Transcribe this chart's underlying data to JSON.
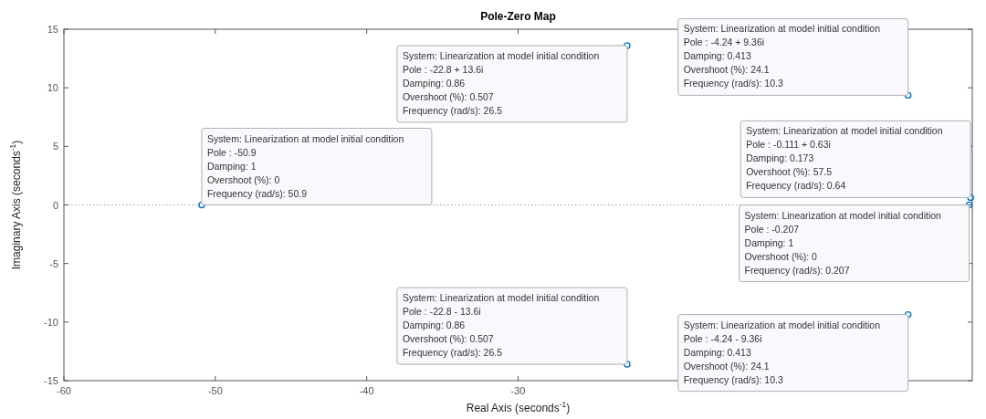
{
  "chart_data": {
    "type": "scatter",
    "title": "Pole-Zero Map",
    "xlabel": "Real Axis (seconds$^{-1}$)",
    "ylabel": "Imaginary Axis (seconds$^{-1}$)",
    "x": [
      -50.9,
      -22.8,
      -22.8,
      -4.24,
      -4.24,
      -0.111,
      -0.207
    ],
    "series": [
      {
        "color": "#0072bd",
        "values": [
          0,
          13.6,
          -13.6,
          9.36,
          -9.36,
          0.63,
          0
        ]
      }
    ],
    "marker": "circle",
    "xlim": [
      -60,
      0
    ],
    "ylim": [
      -15,
      15
    ],
    "xticks": [
      -60,
      -50,
      -40,
      -30
    ],
    "yticks": [
      -15,
      -10,
      -5,
      0,
      5,
      10,
      15
    ],
    "ref_lines": [
      {
        "axis": "y",
        "value": 0,
        "label": null,
        "color": "#999999",
        "line_style": "dotted"
      }
    ],
    "annotations": [
      {
        "text": "System: Linearization at model initial condition\nPole : -50.9\nDamping: 1\nOvershoot (%): 0\nFrequency (rad/s): 50.9",
        "x": -50.9,
        "y": 0
      },
      {
        "text": "System: Linearization at model initial condition\nPole : -22.8 + 13.6i\nDamping: 0.86\nOvershoot (%): 0.507\nFrequency (rad/s): 26.5",
        "x": -22.8,
        "y": 13.6
      },
      {
        "text": "System: Linearization at model initial condition\nPole : -22.8 - 13.6i\nDamping: 0.86\nOvershoot (%): 0.507\nFrequency (rad/s): 26.5",
        "x": -22.8,
        "y": -13.6
      },
      {
        "text": "System: Linearization at model initial condition\nPole : -4.24 + 9.36i\nDamping: 0.413\nOvershoot (%): 24.1\nFrequency (rad/s): 10.3",
        "x": -4.24,
        "y": 9.36
      },
      {
        "text": "System: Linearization at model initial condition\nPole : -4.24 - 9.36i\nDamping: 0.413\nOvershoot (%): 24.1\nFrequency (rad/s): 10.3",
        "x": -4.24,
        "y": -9.36
      },
      {
        "text": "System: Linearization at model initial condition\nPole : -0.111 + 0.63i\nDamping: 0.173\nOvershoot (%): 57.5\nFrequency (rad/s): 0.64",
        "x": -0.111,
        "y": 0.63
      },
      {
        "text": "System: Linearization at model initial condition\nPole : -0.207\nDamping: 1\nOvershoot (%): 0\nFrequency (rad/s): 0.207",
        "x": -0.207,
        "y": 0
      }
    ]
  }
}
